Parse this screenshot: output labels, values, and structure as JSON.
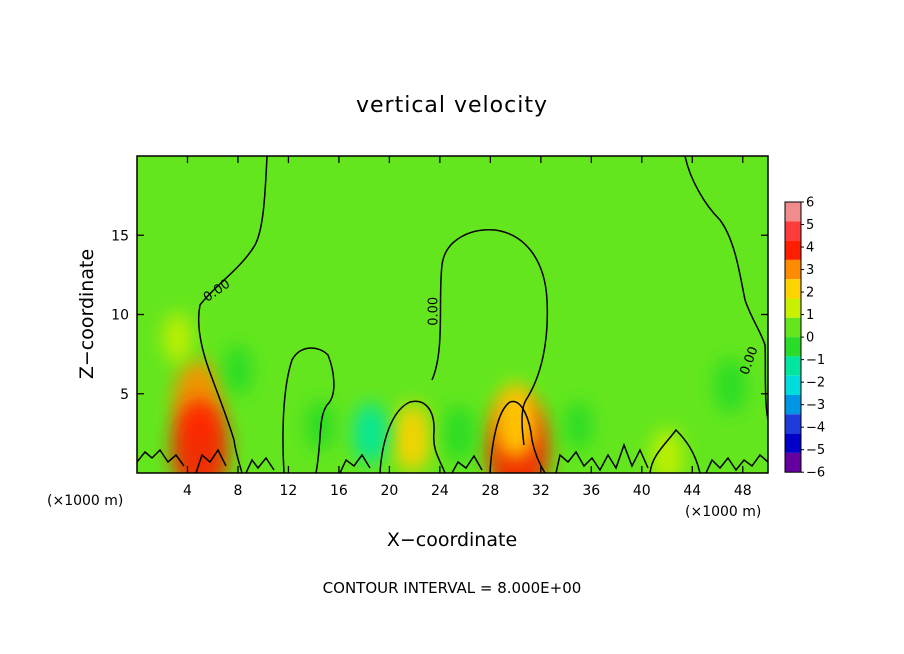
{
  "chart_data": {
    "type": "heatmap",
    "title": "vertical velocity",
    "xlabel": "X−coordinate",
    "ylabel": "Z−coordinate",
    "x_unit": "(×1000 m)",
    "z_unit": "(×1000 m)",
    "xlim": [
      0,
      50
    ],
    "ylim": [
      0,
      20
    ],
    "x_ticks": [
      4,
      8,
      12,
      16,
      20,
      24,
      28,
      32,
      36,
      40,
      44,
      48
    ],
    "y_ticks": [
      5,
      10,
      15
    ],
    "x_tick_labels": [
      "4",
      "8",
      "12",
      "16",
      "20",
      "24",
      "28",
      "32",
      "36",
      "40",
      "44",
      "48"
    ],
    "y_tick_labels": [
      "5",
      "10",
      "15"
    ],
    "colorbar": {
      "values": [
        6,
        5,
        4,
        3,
        2,
        1,
        0,
        -1,
        -2,
        -3,
        -4,
        -5,
        -6
      ],
      "labels": [
        "6",
        "5",
        "4",
        "3",
        "2",
        "1",
        "0",
        "−1",
        "−2",
        "−3",
        "−4",
        "−5",
        "−6"
      ],
      "colors": [
        "#f08c8c",
        "#ff3c3c",
        "#ff1e00",
        "#ff8c00",
        "#ffd200",
        "#c8f000",
        "#64e61e",
        "#28dc28",
        "#00e6a0",
        "#00dcdc",
        "#0096e6",
        "#1e3cdc",
        "#0000c8",
        "#6400a0"
      ]
    },
    "contour_labels": [
      "0.00",
      "0.00",
      "0.00"
    ],
    "contour_label_positions": [
      {
        "x": 6.5,
        "z": 11.3,
        "angle": -35
      },
      {
        "x": 23.8,
        "z": 10.2,
        "angle": -90
      },
      {
        "x": 48.8,
        "z": 7.0,
        "angle": -70
      }
    ],
    "contour_interval": "CONTOUR INTERVAL = 8.000E+00",
    "background_value": 0,
    "features": [
      {
        "x": 4.8,
        "z": 4.5,
        "value": 3.0
      },
      {
        "x": 5.0,
        "z": 1.5,
        "value": 4.0
      },
      {
        "x": 30.2,
        "z": 1.5,
        "value": 4.5
      },
      {
        "x": 30.0,
        "z": 3.3,
        "value": 2.5
      },
      {
        "x": 21.8,
        "z": 2.2,
        "value": 2.0
      },
      {
        "x": 14.5,
        "z": 3.0,
        "value": -0.8
      },
      {
        "x": 18.5,
        "z": 2.5,
        "value": -1.5
      },
      {
        "x": 25.5,
        "z": 2.5,
        "value": -1.2
      },
      {
        "x": 8.0,
        "z": 6.5,
        "value": -0.8
      },
      {
        "x": 35.0,
        "z": 3.0,
        "value": -0.7
      },
      {
        "x": 47.0,
        "z": 5.5,
        "value": -1.2
      },
      {
        "x": 42.0,
        "z": 1.0,
        "value": 1.2
      },
      {
        "x": 3.2,
        "z": 8.5,
        "value": 0.8
      }
    ]
  }
}
